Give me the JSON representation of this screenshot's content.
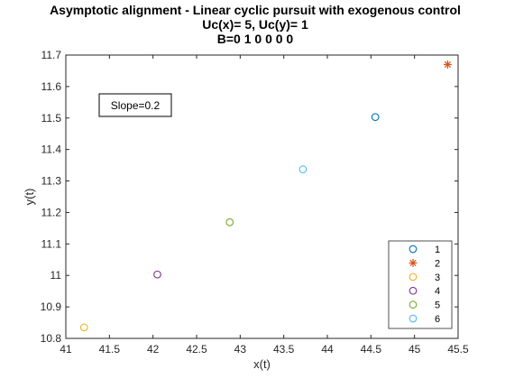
{
  "chart_data": {
    "type": "scatter",
    "title": "Asymptotic alignment - Linear cyclic pursuit with exogenous control",
    "subtitle_lines": [
      "Uc(x)= 5, Uc(y)= 1",
      "B=0  1  0  0  0  0"
    ],
    "xlabel": "x(t)",
    "ylabel": "y(t)",
    "xlim": [
      41,
      45.5
    ],
    "ylim": [
      10.8,
      11.7
    ],
    "xticks": [
      "41",
      "41.5",
      "42",
      "42.5",
      "43",
      "43.5",
      "44",
      "44.5",
      "45",
      "45.5"
    ],
    "yticks": [
      "10.8",
      "10.9",
      "11",
      "11.1",
      "11.2",
      "11.3",
      "11.4",
      "11.5",
      "11.6",
      "11.7"
    ],
    "grid": false,
    "legend_position": "bottom-right",
    "annotation": "Slope=0.2",
    "series": [
      {
        "name": "1",
        "marker": "circle",
        "color": "#0072BD",
        "x": [
          44.55
        ],
        "y": [
          11.503
        ]
      },
      {
        "name": "2",
        "marker": "star",
        "color": "#D95319",
        "x": [
          45.38
        ],
        "y": [
          11.67
        ]
      },
      {
        "name": "3",
        "marker": "circle",
        "color": "#EDB120",
        "x": [
          41.21
        ],
        "y": [
          10.835
        ]
      },
      {
        "name": "4",
        "marker": "circle",
        "color": "#7E2F8E",
        "x": [
          42.05
        ],
        "y": [
          11.003
        ]
      },
      {
        "name": "5",
        "marker": "circle",
        "color": "#77AC30",
        "x": [
          42.88
        ],
        "y": [
          11.169
        ]
      },
      {
        "name": "6",
        "marker": "circle",
        "color": "#4DBEEE",
        "x": [
          43.72
        ],
        "y": [
          11.337
        ]
      }
    ]
  }
}
